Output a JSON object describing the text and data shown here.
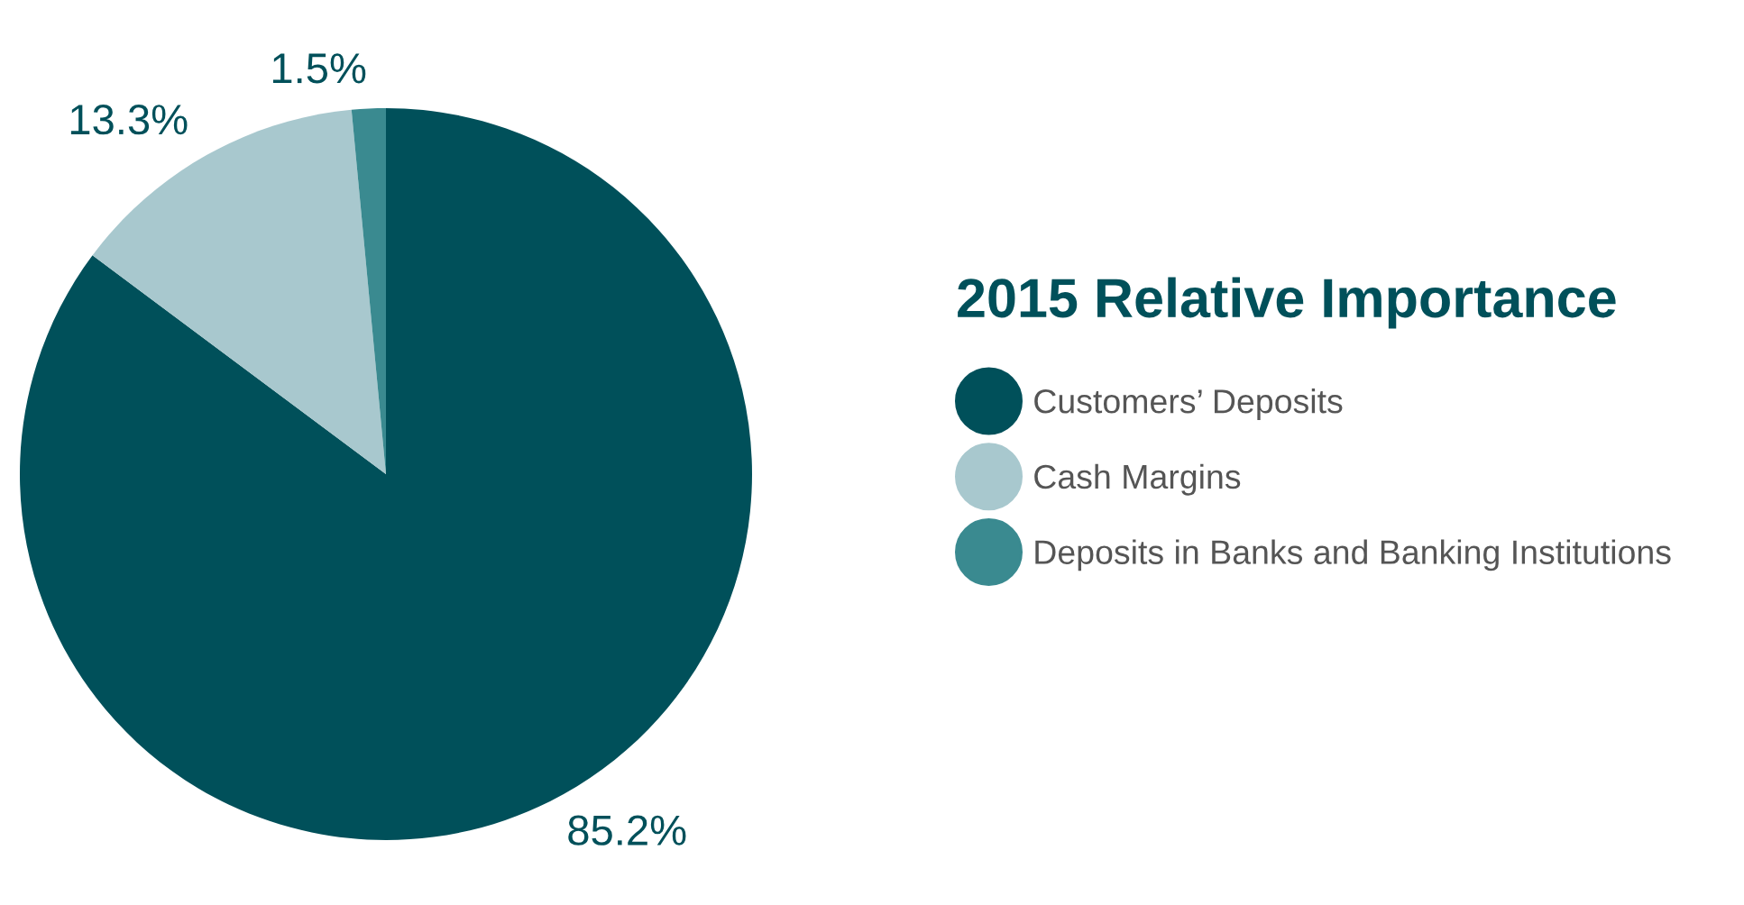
{
  "chart_data": {
    "type": "pie",
    "title": "2015 Relative Importance",
    "categories": [
      "Customers’ Deposits",
      "Cash Margins",
      "Deposits in Banks and Banking Institutions"
    ],
    "values": [
      85.2,
      13.3,
      1.5
    ],
    "value_labels": [
      "85.2%",
      "13.3%",
      "1.5%"
    ],
    "colors": [
      "#00505a",
      "#a8c8ce",
      "#3a8a90"
    ],
    "legend": "right"
  }
}
